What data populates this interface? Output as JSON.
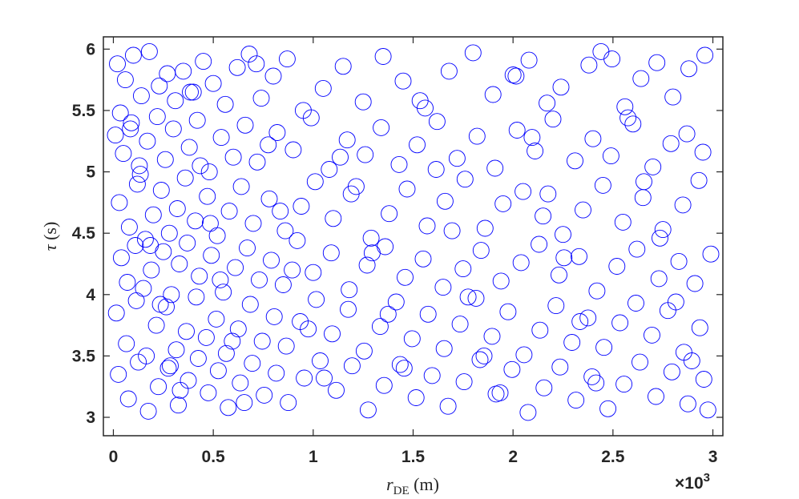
{
  "chart_data": {
    "type": "scatter",
    "marker": "open-circle",
    "color": "#0000ff",
    "xlabel_symbol": "r",
    "xlabel_sub": "DE",
    "xlabel_unit": " (m)",
    "ylabel_symbol": "τ",
    "ylabel_unit": " (s)",
    "x_exponent_label": "×10",
    "x_exponent_power": "3",
    "xlim": [
      -50,
      3050
    ],
    "ylim": [
      2.85,
      6.1
    ],
    "xticks": [
      0,
      500,
      1000,
      1500,
      2000,
      2500,
      3000
    ],
    "xtick_labels": [
      "0",
      "0.5",
      "1",
      "1.5",
      "2",
      "2.5",
      "3"
    ],
    "yticks": [
      3,
      3.5,
      4,
      4.5,
      5,
      5.5,
      6
    ],
    "ytick_labels": [
      "3",
      "3.5",
      "4",
      "4.5",
      "5",
      "5.5",
      "6"
    ],
    "grid": false,
    "legend": "none",
    "x": [
      20,
      60,
      100,
      140,
      180,
      230,
      270,
      310,
      350,
      400,
      450,
      500,
      560,
      620,
      680,
      740,
      800,
      870,
      950,
      1050,
      1150,
      1250,
      1350,
      1450,
      1560,
      1680,
      1800,
      1900,
      2000,
      2080,
      2170,
      2240,
      2380,
      2440,
      2560,
      2640,
      2720,
      2800,
      2880,
      2960,
      10,
      50,
      90,
      130,
      170,
      220,
      260,
      300,
      380,
      420,
      480,
      540,
      600,
      660,
      720,
      820,
      900,
      990,
      1080,
      1170,
      1260,
      1340,
      1430,
      1520,
      1620,
      1720,
      1820,
      1910,
      2020,
      2110,
      2200,
      2310,
      2400,
      2490,
      2600,
      2700,
      2790,
      2870,
      2950,
      30,
      80,
      120,
      160,
      200,
      240,
      280,
      320,
      360,
      410,
      470,
      520,
      580,
      640,
      700,
      780,
      860,
      940,
      1010,
      1100,
      1190,
      1290,
      1380,
      1470,
      1570,
      1660,
      1760,
      1860,
      1950,
      2050,
      2150,
      2250,
      2350,
      2450,
      2550,
      2650,
      2750,
      2850,
      2930,
      40,
      70,
      110,
      150,
      190,
      250,
      290,
      330,
      370,
      430,
      490,
      550,
      610,
      670,
      730,
      790,
      850,
      920,
      1000,
      1090,
      1180,
      1270,
      1360,
      1460,
      1550,
      1650,
      1750,
      1840,
      1940,
      2040,
      2130,
      2230,
      2330,
      2420,
      2520,
      2620,
      2730,
      2830,
      2910,
      2990,
      15,
      65,
      115,
      165,
      215,
      265,
      315,
      365,
      415,
      465,
      515,
      565,
      625,
      685,
      745,
      805,
      865,
      935,
      1015,
      1095,
      1175,
      1255,
      1335,
      1415,
      1495,
      1575,
      1655,
      1735,
      1815,
      1895,
      1975,
      2055,
      2135,
      2215,
      2295,
      2375,
      2455,
      2535,
      2615,
      2695,
      2775,
      2855,
      2935,
      25,
      75,
      125,
      175,
      225,
      275,
      325,
      375,
      425,
      475,
      525,
      575,
      635,
      695,
      755,
      815,
      875,
      955,
      1035,
      1115,
      1195,
      1275,
      1355,
      1435,
      1515,
      1595,
      1675,
      1755,
      1835,
      1915,
      1995,
      2075,
      2155,
      2235,
      2315,
      2395,
      2475,
      2555,
      2635,
      2715,
      2795,
      2875,
      2955,
      35,
      85,
      135,
      185,
      235,
      285,
      335,
      385,
      435,
      485,
      535,
      595,
      655,
      715,
      775,
      835,
      895,
      975,
      1055,
      1135,
      1215,
      1295,
      1375,
      1455,
      1535,
      1615,
      1695,
      1775,
      1855,
      1935,
      2015,
      2095,
      2175,
      2255,
      2335,
      2415,
      2495,
      2575,
      2655,
      2735,
      2815,
      2895,
      2975
    ],
    "y": [
      5.88,
      5.75,
      5.95,
      5.62,
      5.98,
      5.7,
      5.8,
      5.58,
      5.82,
      5.65,
      5.9,
      5.72,
      5.55,
      5.85,
      5.96,
      5.6,
      5.78,
      5.92,
      5.5,
      5.68,
      5.86,
      5.57,
      5.94,
      5.74,
      5.52,
      5.82,
      5.97,
      5.63,
      5.79,
      5.91,
      5.56,
      5.69,
      5.87,
      5.98,
      5.53,
      5.76,
      5.89,
      5.61,
      5.84,
      5.95,
      5.3,
      5.15,
      5.4,
      5.05,
      5.25,
      5.45,
      5.1,
      5.35,
      5.2,
      5.42,
      5.0,
      5.28,
      5.12,
      5.38,
      5.08,
      5.32,
      5.18,
      5.44,
      5.02,
      5.26,
      5.14,
      5.36,
      5.06,
      5.22,
      5.41,
      5.11,
      5.29,
      5.03,
      5.34,
      5.17,
      5.43,
      5.09,
      5.27,
      5.13,
      5.39,
      5.04,
      5.23,
      5.31,
      5.16,
      4.75,
      4.55,
      4.9,
      4.45,
      4.65,
      4.85,
      4.5,
      4.7,
      4.95,
      4.6,
      4.8,
      4.48,
      4.68,
      4.88,
      4.58,
      4.78,
      4.52,
      4.72,
      4.92,
      4.62,
      4.82,
      4.46,
      4.66,
      4.86,
      4.56,
      4.76,
      4.94,
      4.54,
      4.74,
      4.84,
      4.64,
      4.49,
      4.69,
      4.89,
      4.59,
      4.79,
      4.53,
      4.73,
      4.93,
      4.3,
      4.1,
      4.4,
      4.05,
      4.2,
      4.35,
      4.0,
      4.25,
      4.42,
      4.15,
      4.32,
      4.02,
      4.22,
      4.38,
      4.12,
      4.28,
      4.08,
      4.44,
      4.18,
      4.34,
      4.04,
      4.24,
      4.39,
      4.14,
      4.29,
      4.06,
      4.21,
      4.36,
      4.11,
      4.26,
      4.41,
      4.16,
      4.31,
      4.03,
      4.23,
      4.37,
      4.13,
      4.27,
      4.09,
      4.33,
      3.85,
      3.6,
      3.95,
      3.5,
      3.75,
      3.9,
      3.55,
      3.7,
      3.98,
      3.65,
      3.8,
      3.52,
      3.72,
      3.92,
      3.62,
      3.82,
      3.58,
      3.78,
      3.96,
      3.68,
      3.88,
      3.54,
      3.74,
      3.94,
      3.64,
      3.84,
      3.56,
      3.76,
      3.97,
      3.66,
      3.86,
      3.51,
      3.71,
      3.91,
      3.61,
      3.81,
      3.57,
      3.77,
      3.93,
      3.67,
      3.87,
      3.53,
      3.73,
      3.35,
      3.15,
      3.45,
      3.05,
      3.25,
      3.4,
      3.1,
      3.3,
      3.48,
      3.2,
      3.38,
      3.08,
      3.28,
      3.44,
      3.18,
      3.36,
      3.12,
      3.32,
      3.46,
      3.22,
      3.42,
      3.06,
      3.26,
      3.43,
      3.16,
      3.34,
      3.09,
      3.29,
      3.47,
      3.19,
      3.39,
      3.04,
      3.24,
      3.41,
      3.14,
      3.33,
      3.07,
      3.27,
      3.45,
      3.17,
      3.37,
      3.11,
      3.31,
      5.48,
      5.35,
      4.98,
      4.4,
      3.92,
      3.42,
      3.22,
      5.65,
      5.05,
      4.58,
      4.12,
      3.62,
      3.12,
      5.88,
      5.22,
      4.68,
      4.2,
      3.72,
      3.32,
      5.12,
      4.88,
      4.34,
      3.84,
      3.4,
      5.58,
      5.02,
      4.52,
      3.98,
      3.5,
      3.2,
      5.78,
      5.28,
      4.82,
      4.3,
      3.78,
      3.28,
      5.92,
      5.44,
      4.92,
      4.46,
      3.94,
      3.46,
      3.06
    ]
  }
}
